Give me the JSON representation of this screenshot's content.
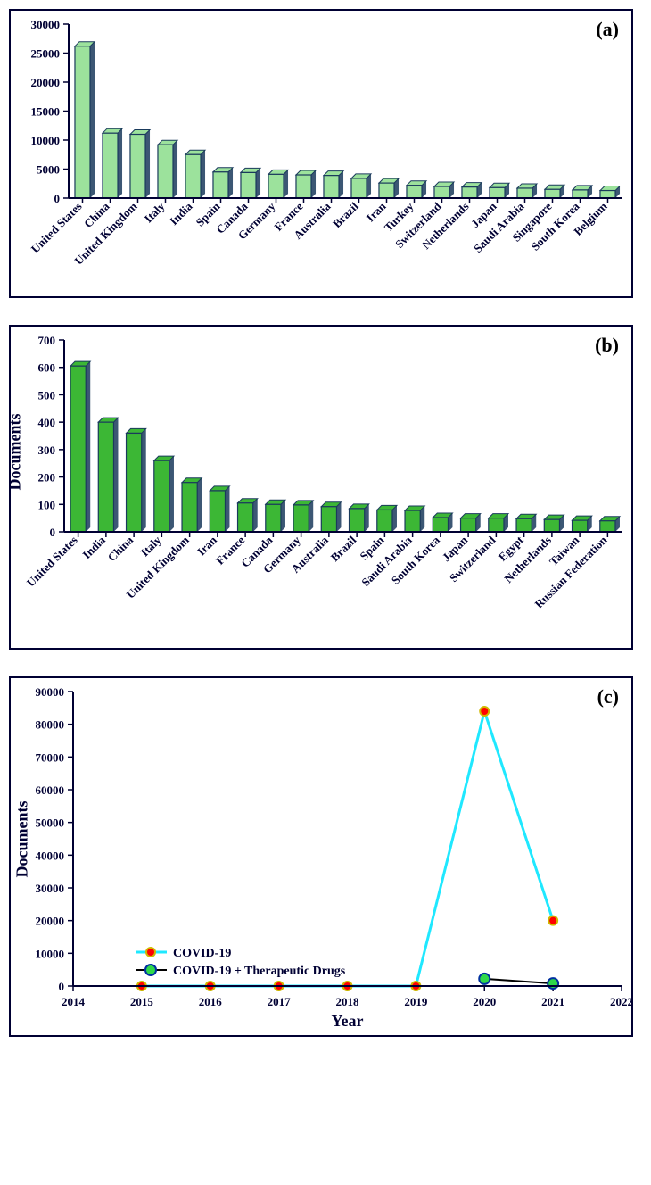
{
  "panel_a": {
    "label": "(a)",
    "type": "bar",
    "categories": [
      "United States",
      "China",
      "United Kingdom",
      "Italy",
      "India",
      "Spain",
      "Canada",
      "Germany",
      "France",
      "Australia",
      "Brazil",
      "Iran",
      "Turkey",
      "Switzerland",
      "Netherlands",
      "Japan",
      "Saudi Arabia",
      "Singapore",
      "South Korea",
      "Belgium"
    ],
    "values": [
      26200,
      11200,
      11000,
      9200,
      7500,
      4500,
      4400,
      4100,
      4000,
      3900,
      3400,
      2600,
      2200,
      2000,
      1900,
      1800,
      1700,
      1500,
      1400,
      1300
    ],
    "ylim": [
      0,
      30000
    ],
    "ytick_step": 5000,
    "bar_fill": "#9ce29c",
    "bar_stroke": "#1a3a5c",
    "axis_color": "#000033",
    "tick_font_size": 13,
    "tick_font_weight": "bold",
    "category_font_size": 13,
    "category_rotation": -45
  },
  "panel_b": {
    "label": "(b)",
    "type": "bar",
    "categories": [
      "United States",
      "India",
      "China",
      "Italy",
      "United Kingdom",
      "Iran",
      "France",
      "Canada",
      "Germany",
      "Australia",
      "Brazil",
      "Spain",
      "Saudi Arabia",
      "South Korea",
      "Japan",
      "Switzerland",
      "Egypt",
      "Netherlands",
      "Taiwan",
      "Russian Federation"
    ],
    "values": [
      605,
      400,
      360,
      260,
      180,
      150,
      105,
      100,
      98,
      92,
      85,
      80,
      78,
      52,
      50,
      50,
      48,
      45,
      42,
      40
    ],
    "ylim": [
      0,
      700
    ],
    "ytick_step": 100,
    "ylabel": "Documents",
    "bar_fill": "#3cb735",
    "bar_stroke": "#1a3a5c",
    "axis_color": "#000033",
    "tick_font_size": 13,
    "tick_font_weight": "bold",
    "category_font_size": 13,
    "category_rotation": -45,
    "ylabel_fontsize": 18
  },
  "panel_c": {
    "label": "(c)",
    "type": "line",
    "xlim": [
      2014,
      2022
    ],
    "xtick_step": 1,
    "ylim": [
      0,
      90000
    ],
    "ytick_step": 10000,
    "xlabel": "Year",
    "ylabel": "Documents",
    "series": [
      {
        "name": "COVID-19",
        "x": [
          2015,
          2016,
          2017,
          2018,
          2019,
          2020,
          2021
        ],
        "y": [
          0,
          0,
          0,
          0,
          0,
          84000,
          20000
        ],
        "line_color": "#1fe8ff",
        "line_width": 3,
        "marker_fill": "#ff0000",
        "marker_stroke": "#d0b800",
        "marker_radius": 5
      },
      {
        "name": "COVID-19 + Therapeutic Drugs",
        "x": [
          2020,
          2021
        ],
        "y": [
          2200,
          800
        ],
        "line_color": "#000000",
        "line_width": 2,
        "marker_fill": "#2fd84a",
        "marker_stroke": "#0030a0",
        "marker_radius": 6
      }
    ],
    "axis_color": "#000033",
    "tick_font_size": 13,
    "tick_font_weight": "bold",
    "label_fontsize": 18,
    "legend_fontsize": 14
  }
}
